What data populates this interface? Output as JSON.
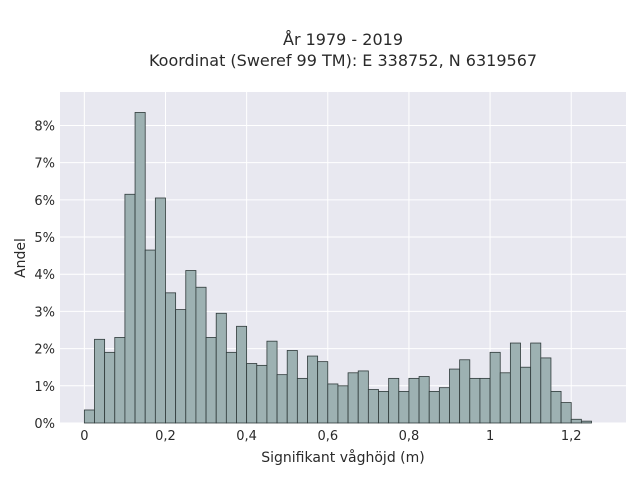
{
  "chart_data": {
    "type": "bar",
    "title": "År 1979 - 2019",
    "subtitle": "Koordinat (Sweref 99 TM): E 338752, N 6319567",
    "xlabel": "Signifikant våghöjd (m)",
    "ylabel": "Andel",
    "bin_width": 0.025,
    "xlim": [
      -0.06,
      1.335
    ],
    "ylim": [
      0,
      8.9
    ],
    "x_ticks": [
      0,
      0.2,
      0.4,
      0.6,
      0.8,
      1.0,
      1.2
    ],
    "x_tick_labels": [
      "0",
      "0,2",
      "0,4",
      "0,6",
      "0,8",
      "1",
      "1,2"
    ],
    "y_ticks": [
      0,
      1,
      2,
      3,
      4,
      5,
      6,
      7,
      8
    ],
    "y_tick_labels": [
      "0%",
      "1%",
      "2%",
      "3%",
      "4%",
      "5%",
      "6%",
      "7%",
      "8%"
    ],
    "grid": true,
    "background_color": "#e8e8f0",
    "bar_color": "#9db1b2",
    "bar_edge_color": "#2f3a3a",
    "bins": [
      {
        "x": 0.0125,
        "y": 0.35
      },
      {
        "x": 0.0375,
        "y": 2.25
      },
      {
        "x": 0.0625,
        "y": 1.9
      },
      {
        "x": 0.0875,
        "y": 2.3
      },
      {
        "x": 0.1125,
        "y": 6.15
      },
      {
        "x": 0.1375,
        "y": 8.35
      },
      {
        "x": 0.1625,
        "y": 4.65
      },
      {
        "x": 0.1875,
        "y": 6.05
      },
      {
        "x": 0.2125,
        "y": 3.5
      },
      {
        "x": 0.2375,
        "y": 3.05
      },
      {
        "x": 0.2625,
        "y": 4.1
      },
      {
        "x": 0.2875,
        "y": 3.65
      },
      {
        "x": 0.3125,
        "y": 2.3
      },
      {
        "x": 0.3375,
        "y": 2.95
      },
      {
        "x": 0.3625,
        "y": 1.9
      },
      {
        "x": 0.3875,
        "y": 2.6
      },
      {
        "x": 0.4125,
        "y": 1.6
      },
      {
        "x": 0.4375,
        "y": 1.55
      },
      {
        "x": 0.4625,
        "y": 2.2
      },
      {
        "x": 0.4875,
        "y": 1.3
      },
      {
        "x": 0.5125,
        "y": 1.95
      },
      {
        "x": 0.5375,
        "y": 1.2
      },
      {
        "x": 0.5625,
        "y": 1.8
      },
      {
        "x": 0.5875,
        "y": 1.65
      },
      {
        "x": 0.6125,
        "y": 1.05
      },
      {
        "x": 0.6375,
        "y": 1.0
      },
      {
        "x": 0.6625,
        "y": 1.35
      },
      {
        "x": 0.6875,
        "y": 1.4
      },
      {
        "x": 0.7125,
        "y": 0.9
      },
      {
        "x": 0.7375,
        "y": 0.85
      },
      {
        "x": 0.7625,
        "y": 1.2
      },
      {
        "x": 0.7875,
        "y": 0.85
      },
      {
        "x": 0.8125,
        "y": 1.2
      },
      {
        "x": 0.8375,
        "y": 1.25
      },
      {
        "x": 0.8625,
        "y": 0.85
      },
      {
        "x": 0.8875,
        "y": 0.95
      },
      {
        "x": 0.9125,
        "y": 1.45
      },
      {
        "x": 0.9375,
        "y": 1.7
      },
      {
        "x": 0.9625,
        "y": 1.2
      },
      {
        "x": 0.9875,
        "y": 1.2
      },
      {
        "x": 1.0125,
        "y": 1.9
      },
      {
        "x": 1.0375,
        "y": 1.35
      },
      {
        "x": 1.0625,
        "y": 2.15
      },
      {
        "x": 1.0875,
        "y": 1.5
      },
      {
        "x": 1.1125,
        "y": 2.15
      },
      {
        "x": 1.1375,
        "y": 1.75
      },
      {
        "x": 1.1625,
        "y": 0.85
      },
      {
        "x": 1.1875,
        "y": 0.55
      },
      {
        "x": 1.2125,
        "y": 0.1
      },
      {
        "x": 1.2375,
        "y": 0.05
      }
    ]
  }
}
